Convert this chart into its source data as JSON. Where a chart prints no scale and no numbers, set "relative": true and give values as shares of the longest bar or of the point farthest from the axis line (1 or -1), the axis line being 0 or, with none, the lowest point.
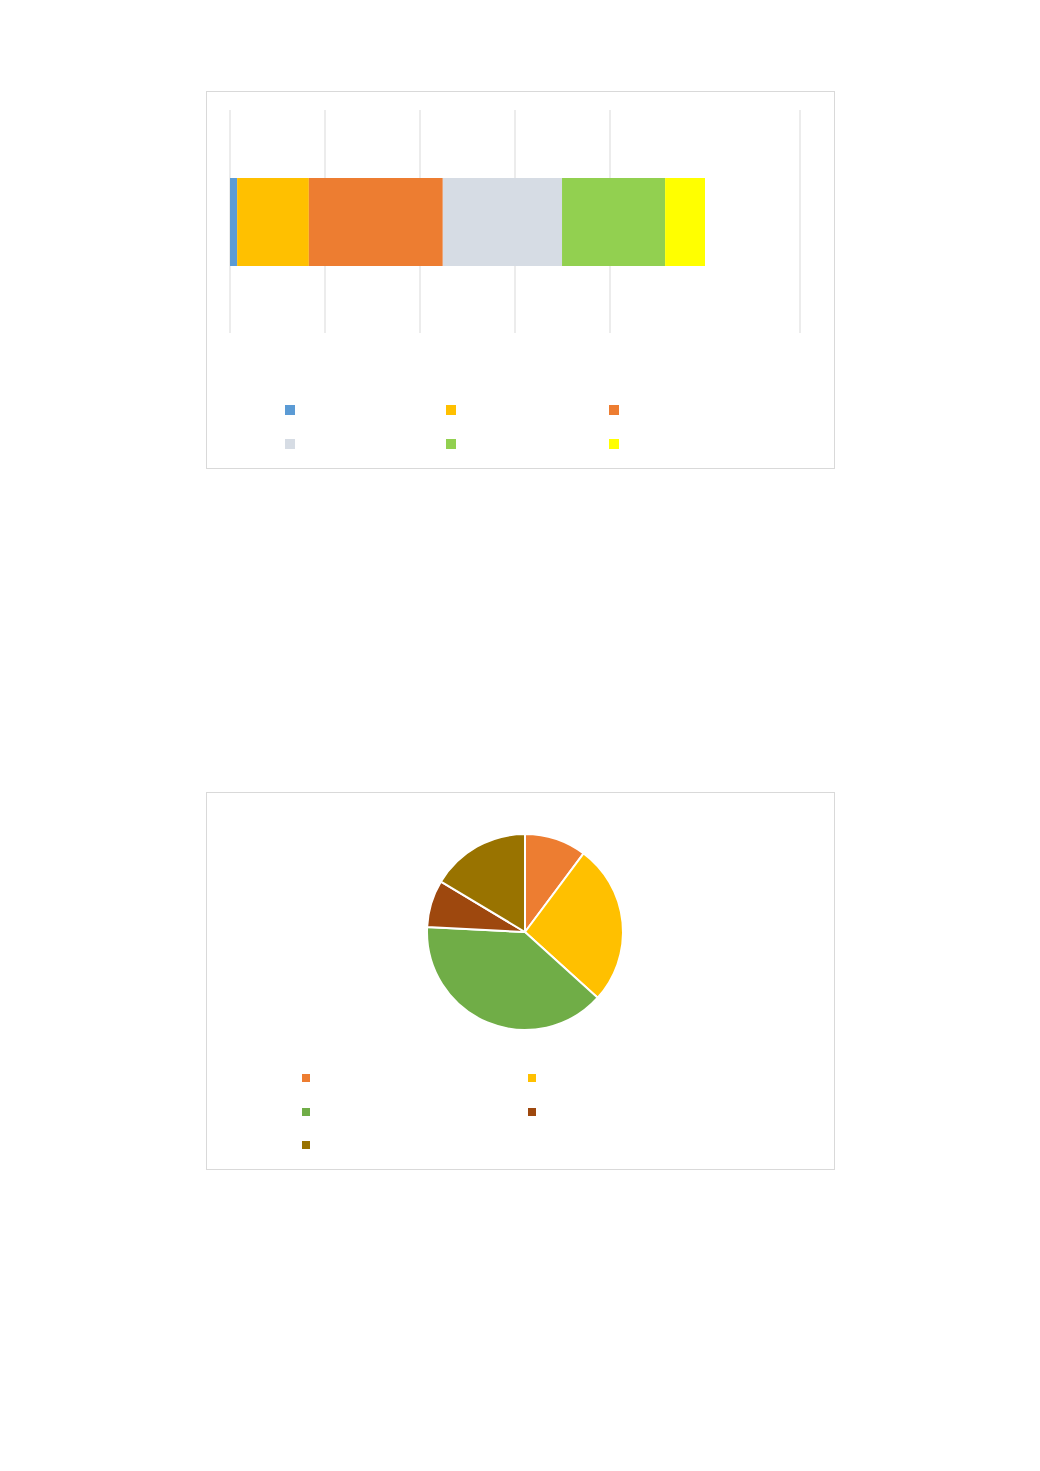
{
  "chart_data": [
    {
      "type": "bar",
      "orientation": "horizontal",
      "stacked": true,
      "relative": true,
      "grid": "x",
      "categories": [
        null
      ],
      "series": [
        {
          "color": "#5b9bd5",
          "values": [
            0.015
          ]
        },
        {
          "color": "#ffc000",
          "values": [
            0.151
          ]
        },
        {
          "color": "#ed7d31",
          "values": [
            0.282
          ]
        },
        {
          "color": "#d6dce4",
          "values": [
            0.251
          ]
        },
        {
          "color": "#92d050",
          "values": [
            0.217
          ]
        },
        {
          "color": "#ffff00",
          "values": [
            0.084
          ]
        }
      ]
    },
    {
      "type": "pie",
      "categories": [
        null,
        null,
        null,
        null,
        null
      ],
      "values": [
        10.2,
        26.5,
        39.1,
        7.8,
        16.4
      ],
      "colors": [
        "#ed7d31",
        "#ffc000",
        "#70ad47",
        "#9e480e",
        "#997300"
      ]
    }
  ]
}
